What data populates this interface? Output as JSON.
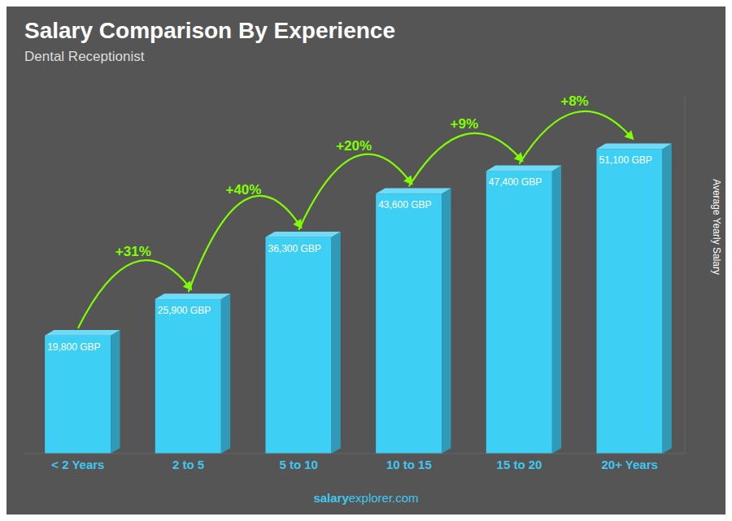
{
  "chart_data": {
    "type": "bar",
    "title": "Salary Comparison By Experience",
    "subtitle": "Dental Receptionist",
    "ylabel": "Average Yearly Salary",
    "categories": [
      "< 2 Years",
      "2 to 5",
      "5 to 10",
      "10 to 15",
      "15 to 20",
      "20+ Years"
    ],
    "values": [
      19800,
      25900,
      36300,
      43600,
      47400,
      51100
    ],
    "value_labels": [
      "19,800 GBP",
      "25,900 GBP",
      "36,300 GBP",
      "43,600 GBP",
      "47,400 GBP",
      "51,100 GBP"
    ],
    "data_labels": true,
    "annotations": [
      "+31%",
      "+40%",
      "+20%",
      "+9%",
      "+8%"
    ],
    "footer": [
      "salary",
      "explorer.com"
    ],
    "color": "#3ecff5",
    "ylim": [
      0,
      60000
    ],
    "yticks": [
      0,
      10000,
      20000,
      30000,
      40000,
      50000,
      60000
    ],
    "tick_labels": "x",
    "grid": false
  }
}
